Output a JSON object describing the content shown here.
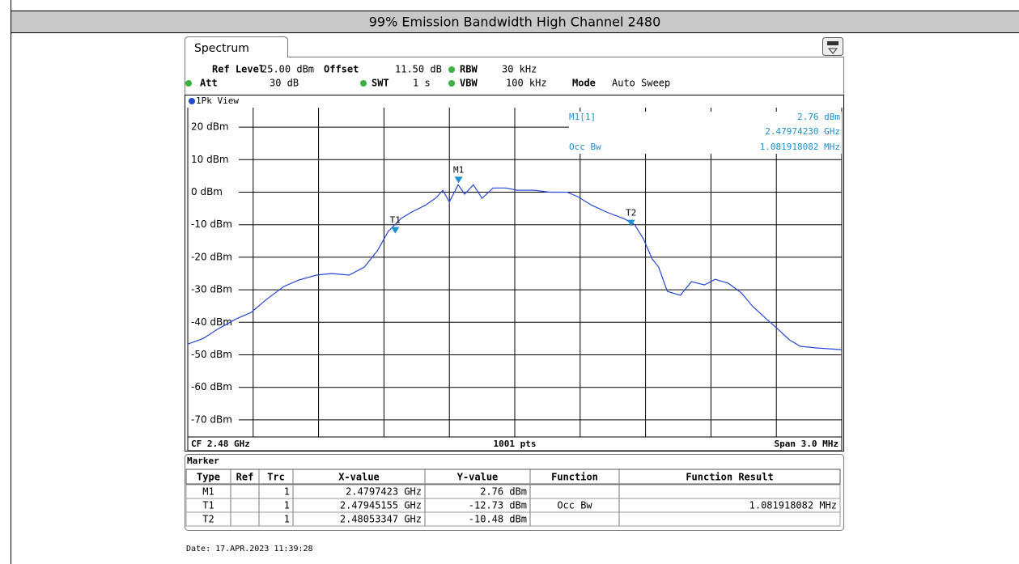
{
  "header": {
    "title": "99% Emission Bandwidth High Channel 2480"
  },
  "window": {
    "tab": "Spectrum",
    "view": "1Pk View",
    "settings": [
      {
        "label": "Ref Level",
        "value": "25.00 dBm"
      },
      {
        "label": "Offset",
        "value": "11.50 dB"
      },
      {
        "label": "RBW",
        "value": "30 kHz"
      },
      {
        "label": "Att",
        "value": "30 dB"
      },
      {
        "label": "SWT",
        "value": "1 s"
      },
      {
        "label": "VBW",
        "value": "100 kHz"
      },
      {
        "label": "Mode",
        "value": "Auto Sweep"
      }
    ],
    "readout": {
      "marker": "M1[1]",
      "level": "2.76 dBm",
      "freq": "2.47974230 GHz",
      "function": "Occ Bw",
      "result": "1.081918082 MHz"
    },
    "footer": {
      "left": "CF 2.48 GHz",
      "center": "1001 pts",
      "right": "Span 3.0 MHz"
    }
  },
  "chart_data": {
    "type": "line",
    "x": [
      2.4785,
      2.47857,
      2.47864,
      2.47872,
      2.47879,
      2.47886,
      2.47894,
      2.47901,
      2.47909,
      2.47916,
      2.47924,
      2.47931,
      2.47937,
      2.47942,
      2.47948,
      2.47953,
      2.47959,
      2.47964,
      2.47967,
      2.4797,
      2.47974,
      2.47977,
      2.47981,
      2.47985,
      2.4799,
      2.47996,
      2.48001,
      2.48009,
      2.48016,
      2.48024,
      2.48029,
      2.48035,
      2.48042,
      2.4805,
      2.48055,
      2.48059,
      2.48063,
      2.48066,
      2.4807,
      2.48076,
      2.48081,
      2.48087,
      2.48092,
      2.48098,
      2.48104,
      2.48109,
      2.48115,
      2.4812,
      2.48126,
      2.48131,
      2.48139,
      2.4815
    ],
    "series": [
      {
        "color": "#2448d8",
        "values": [
          -46.7,
          -45,
          -42,
          -39,
          -37,
          -33,
          -29,
          -27,
          -25.5,
          -25,
          -25.5,
          -23,
          -18,
          -12,
          -8,
          -6,
          -4,
          -1.7,
          0.6,
          -3,
          2.3,
          -0.6,
          2.3,
          -1.9,
          1.3,
          1.3,
          0.6,
          0.6,
          0,
          0,
          -1.4,
          -3.9,
          -6.1,
          -8.1,
          -10,
          -14.3,
          -20.5,
          -23,
          -30.5,
          -31.7,
          -27.5,
          -28.5,
          -26.8,
          -28,
          -31,
          -35,
          -38.7,
          -41.7,
          -45.4,
          -47.4,
          -47.9,
          -48.4
        ]
      }
    ],
    "markers": [
      {
        "name": "M1",
        "x": 2.4797423,
        "y": 2.76
      },
      {
        "name": "T1",
        "x": 2.47945155,
        "y": -12.73
      },
      {
        "name": "T2",
        "x": 2.48053347,
        "y": -10.48
      }
    ],
    "marker_color": "#1b8fd2",
    "xlim": [
      2.4785,
      2.4815
    ],
    "xticks": [
      2.4785,
      2.4788,
      2.4791,
      2.4794,
      2.4797,
      2.48,
      2.4803,
      2.4806,
      2.4809,
      2.4812,
      2.4815
    ],
    "ylim": [
      -75,
      25
    ],
    "yticks": [
      {
        "value": 20,
        "label": "20 dBm"
      },
      {
        "value": 10,
        "label": "10 dBm"
      },
      {
        "value": 0,
        "label": "0 dBm"
      },
      {
        "value": -10,
        "label": "-10 dBm"
      },
      {
        "value": -20,
        "label": "-20 dBm"
      },
      {
        "value": -30,
        "label": "-30 dBm"
      },
      {
        "value": -40,
        "label": "-40 dBm"
      },
      {
        "value": -50,
        "label": "-50 dBm"
      },
      {
        "value": -60,
        "label": "-60 dBm"
      },
      {
        "value": -70,
        "label": "-70 dBm"
      }
    ],
    "grid": true
  },
  "marker_table": {
    "title": "Marker",
    "columns": [
      "Type",
      "Ref",
      "Trc",
      "X-value",
      "Y-value",
      "Function",
      "Function Result"
    ],
    "rows": [
      [
        "M1",
        "",
        "1",
        "2.4797423 GHz",
        "2.76 dBm",
        "",
        ""
      ],
      [
        "T1",
        "",
        "1",
        "2.47945155 GHz",
        "-12.73 dBm",
        "Occ Bw",
        "1.081918082 MHz"
      ],
      [
        "T2",
        "",
        "1",
        "2.48053347 GHz",
        "-10.48 dBm",
        "",
        ""
      ]
    ]
  },
  "date": "Date: 17.APR.2023  11:39:28"
}
